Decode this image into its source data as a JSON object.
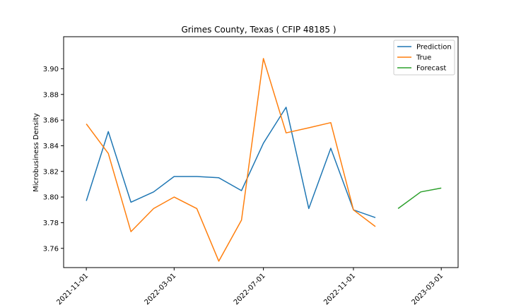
{
  "chart_data": {
    "type": "line",
    "title": "Grimes County, Texas ( CFIP 48185 )",
    "xlabel": "",
    "ylabel": "Microbusiness Density",
    "ylim": [
      3.745,
      3.925
    ],
    "y_ticks": [
      3.76,
      3.78,
      3.8,
      3.82,
      3.84,
      3.86,
      3.88,
      3.9
    ],
    "y_tick_labels": [
      "3.76",
      "3.78",
      "3.80",
      "3.82",
      "3.84",
      "3.86",
      "3.88",
      "3.90"
    ],
    "x_range": [
      "2021-10-01",
      "2023-03-24"
    ],
    "x_ticks": [
      "2021-11-01",
      "2022-03-01",
      "2022-07-01",
      "2022-11-01",
      "2023-03-01"
    ],
    "grid": false,
    "legend_position": "top-right",
    "series": [
      {
        "name": "Prediction",
        "color": "#1f77b4",
        "x": [
          "2021-11-01",
          "2021-12-01",
          "2022-01-01",
          "2022-02-01",
          "2022-03-01",
          "2022-04-01",
          "2022-05-01",
          "2022-06-01",
          "2022-07-01",
          "2022-08-01",
          "2022-09-01",
          "2022-10-01",
          "2022-11-01",
          "2022-12-01"
        ],
        "values": [
          3.797,
          3.851,
          3.796,
          3.804,
          3.816,
          3.816,
          3.815,
          3.805,
          3.842,
          3.87,
          3.791,
          3.838,
          3.79,
          3.784
        ]
      },
      {
        "name": "True",
        "color": "#ff7f0e",
        "x": [
          "2021-11-01",
          "2021-12-01",
          "2022-01-01",
          "2022-02-01",
          "2022-03-01",
          "2022-04-01",
          "2022-05-01",
          "2022-06-01",
          "2022-07-01",
          "2022-08-01",
          "2022-09-01",
          "2022-10-01",
          "2022-11-01",
          "2022-12-01"
        ],
        "values": [
          3.857,
          3.834,
          3.773,
          3.791,
          3.8,
          3.791,
          3.75,
          3.782,
          3.908,
          3.85,
          3.854,
          3.858,
          3.79,
          3.777
        ]
      },
      {
        "name": "Forecast",
        "color": "#2ca02c",
        "x": [
          "2023-01-01",
          "2023-02-01",
          "2023-03-01"
        ],
        "values": [
          3.791,
          3.804,
          3.807
        ]
      }
    ]
  }
}
